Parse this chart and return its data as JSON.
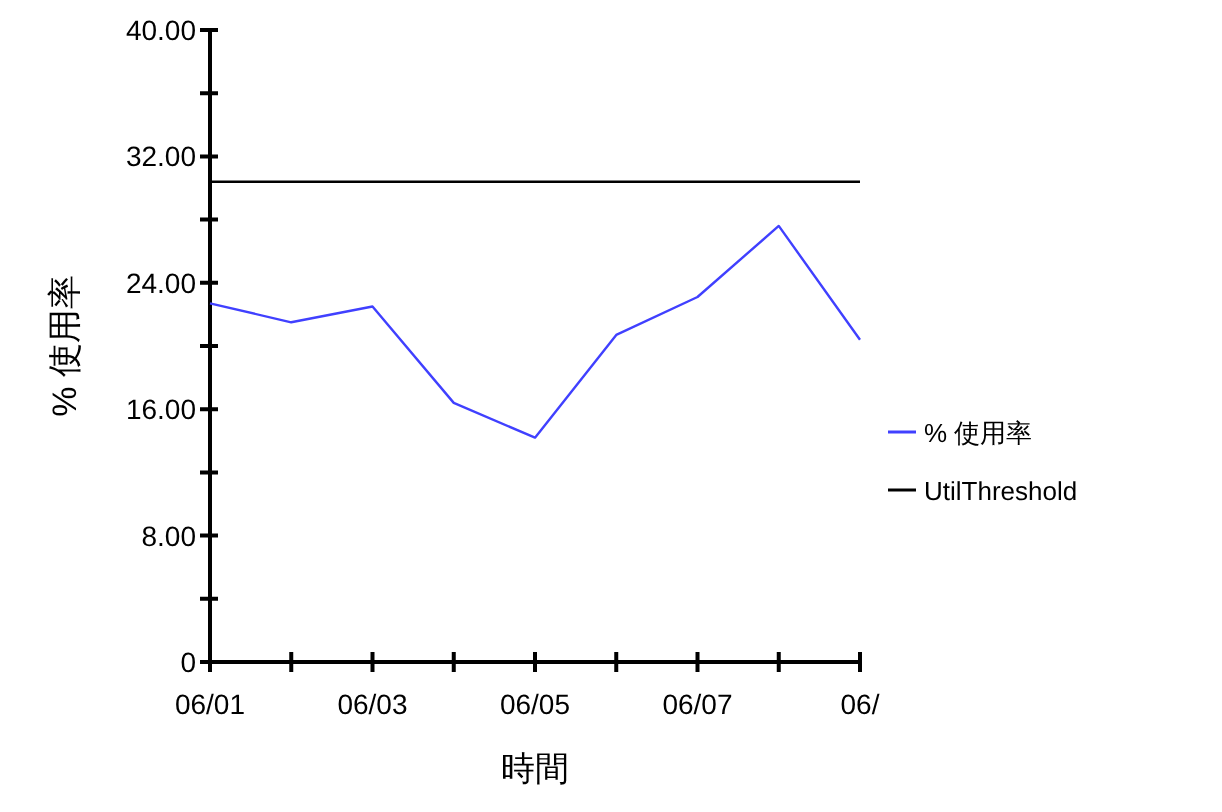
{
  "chart_data": {
    "type": "line",
    "xlabel": "時間",
    "ylabel": "% 使用率",
    "categories": [
      "06/01",
      null,
      "06/03",
      null,
      "06/05",
      null,
      "06/07",
      null,
      "06/"
    ],
    "series": [
      {
        "name": "% 使用率",
        "color": "#4040ff",
        "values": [
          22.7,
          21.5,
          22.5,
          16.4,
          14.2,
          20.7,
          23.1,
          27.6,
          20.4
        ]
      },
      {
        "name": "UtilThreshold",
        "color": "#000000",
        "values": [
          30.4,
          30.4,
          30.4,
          30.4,
          30.4,
          30.4,
          30.4,
          30.4,
          30.4
        ]
      }
    ],
    "ylim": [
      0,
      40
    ],
    "yticks": [
      {
        "value": 0,
        "label": "0"
      },
      {
        "value": 4,
        "label": null
      },
      {
        "value": 8,
        "label": "8.00"
      },
      {
        "value": 12,
        "label": null
      },
      {
        "value": 16,
        "label": "16.00"
      },
      {
        "value": 20,
        "label": null
      },
      {
        "value": 24,
        "label": "24.00"
      },
      {
        "value": 28,
        "label": null
      },
      {
        "value": 32,
        "label": "32.00"
      },
      {
        "value": 36,
        "label": null
      },
      {
        "value": 40,
        "label": "40.00"
      }
    ],
    "grid": false,
    "legend": "right",
    "marker": "none",
    "line_style": "solid"
  }
}
